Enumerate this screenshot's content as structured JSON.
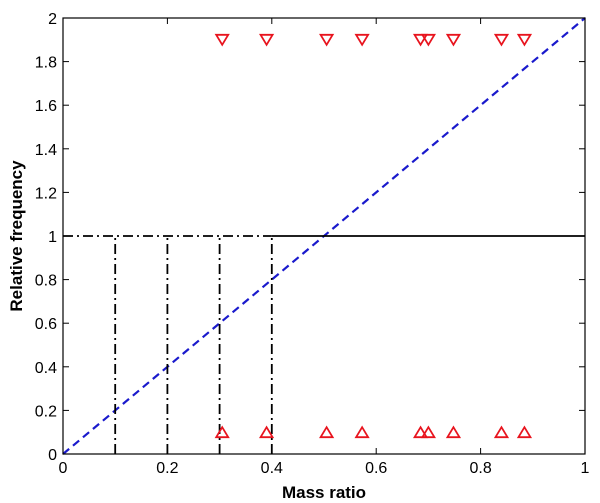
{
  "chart_data": {
    "type": "scatter",
    "title": "",
    "xlabel": "Mass ratio",
    "ylabel": "Relative frequency",
    "xlim": [
      0,
      1
    ],
    "ylim": [
      0,
      2
    ],
    "grid": false,
    "x_ticks": [
      0,
      0.2,
      0.4,
      0.6,
      0.8,
      1
    ],
    "x_tick_labels": [
      "0",
      "0.2",
      "0.4",
      "0.6",
      "0.8",
      "1"
    ],
    "y_ticks": [
      0,
      0.2,
      0.4,
      0.6,
      0.8,
      1,
      1.2,
      1.4,
      1.6,
      1.8,
      2
    ],
    "y_tick_labels": [
      "0",
      "0.2",
      "0.4",
      "0.6",
      "0.8",
      "1",
      "1.2",
      "1.4",
      "1.6",
      "1.8",
      "2"
    ],
    "series": [
      {
        "marker": "triangle-down",
        "color": "#e8141e",
        "x": [
          0.305,
          0.39,
          0.505,
          0.573,
          0.685,
          0.7,
          0.748,
          0.84,
          0.884
        ],
        "y": [
          1.9,
          1.9,
          1.9,
          1.9,
          1.9,
          1.9,
          1.9,
          1.9,
          1.9
        ]
      },
      {
        "marker": "triangle-up",
        "color": "#e8141e",
        "x": [
          0.305,
          0.39,
          0.505,
          0.573,
          0.685,
          0.7,
          0.748,
          0.84,
          0.884
        ],
        "y": [
          0.1,
          0.1,
          0.1,
          0.1,
          0.1,
          0.1,
          0.1,
          0.1,
          0.1
        ]
      }
    ],
    "lines": [
      {
        "style": "dashed",
        "color": "#1a1acc",
        "x": [
          0,
          1
        ],
        "y": [
          0,
          2
        ]
      },
      {
        "style": "solid",
        "color": "#000000",
        "x": [
          0.4,
          1
        ],
        "y": [
          1,
          1
        ]
      },
      {
        "style": "dashdot",
        "color": "#000000",
        "x": [
          0,
          0.4
        ],
        "y": [
          1,
          1
        ]
      }
    ],
    "verticals": {
      "style": "dashdot",
      "color": "#000000",
      "x": [
        0.1,
        0.2,
        0.3,
        0.4
      ],
      "y_from": 0,
      "y_to": 1
    }
  }
}
